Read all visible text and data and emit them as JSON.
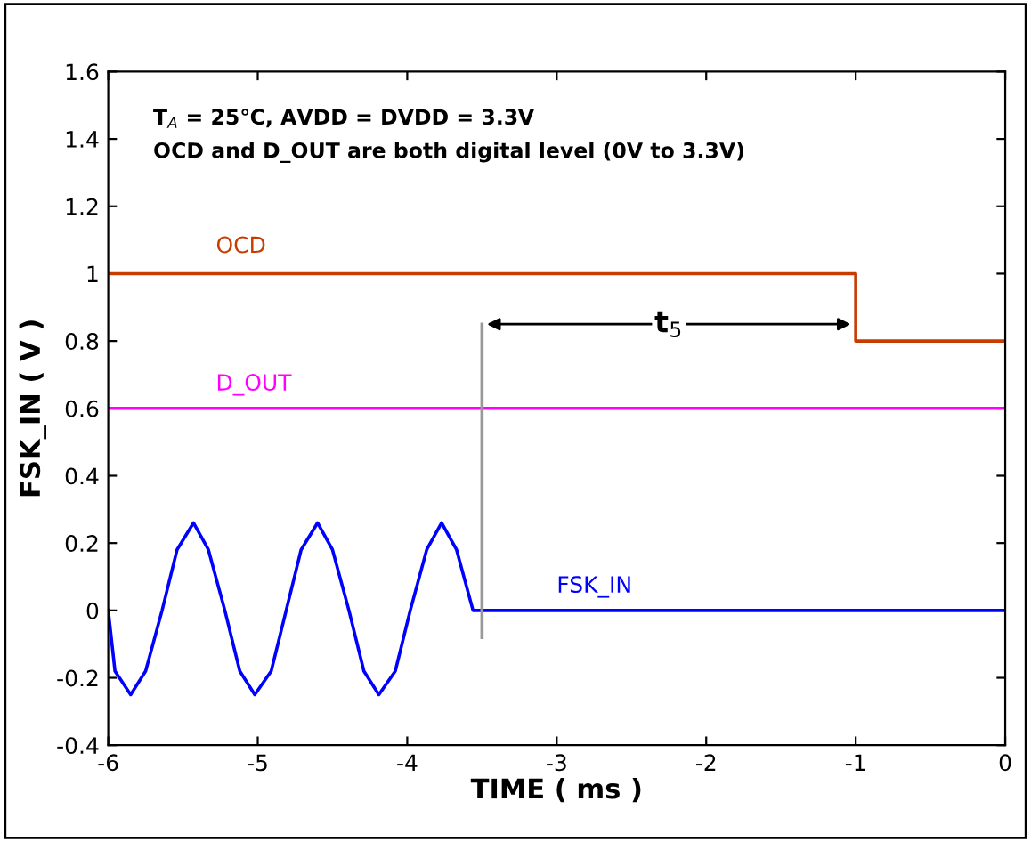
{
  "chart_data": {
    "type": "line",
    "xlabel": "TIME ( ms )",
    "ylabel": "FSK_IN ( V )",
    "xlim": [
      -6,
      0
    ],
    "ylim": [
      -0.4,
      1.6
    ],
    "xticks": [
      -6,
      -5,
      -4,
      -3,
      -2,
      -1,
      0
    ],
    "yticks": [
      -0.4,
      -0.2,
      0,
      0.2,
      0.4,
      0.6,
      0.8,
      1,
      1.2,
      1.4,
      1.6
    ],
    "grid": false,
    "legend": false,
    "annotations": [
      "T$_{A}$ = 25℃, AVDD = DVDD = 3.3V",
      "OCD and D_OUT are both digital level (0V to 3.3V)",
      {
        "text": "t$_{5}$",
        "x": -2.25,
        "y": 0.85
      }
    ],
    "series": [
      {
        "name": "OCD",
        "type": "step",
        "color": "#c83c00",
        "x": [
          -6,
          -1,
          -1,
          0
        ],
        "values": [
          1,
          1,
          0.8,
          0.8
        ]
      },
      {
        "name": "D_OUT",
        "color": "#ff00ff",
        "x": [
          -6,
          0
        ],
        "values": [
          0.6,
          0.6
        ]
      },
      {
        "name": "FSK_IN",
        "color": "#0000ff",
        "x": [
          -6.0,
          -5.955,
          -5.85,
          -5.75,
          -5.64,
          -5.54,
          -5.43,
          -5.33,
          -5.22,
          -5.12,
          -5.02,
          -4.91,
          -4.81,
          -4.71,
          -4.6,
          -4.5,
          -4.39,
          -4.29,
          -4.19,
          -4.08,
          -3.98,
          -3.87,
          -3.77,
          -3.67,
          -3.56,
          -3.5,
          0
        ],
        "values": [
          0,
          -0.18,
          -0.25,
          -0.18,
          0,
          0.18,
          0.26,
          0.18,
          0,
          -0.18,
          -0.25,
          -0.18,
          0,
          0.18,
          0.26,
          0.18,
          0,
          -0.18,
          -0.25,
          -0.18,
          0,
          0.18,
          0.26,
          0.18,
          0,
          0,
          0
        ]
      },
      {
        "color": "#999999",
        "x": [
          -3.5,
          -3.5
        ],
        "values": [
          -0.08,
          0.85
        ]
      }
    ]
  }
}
